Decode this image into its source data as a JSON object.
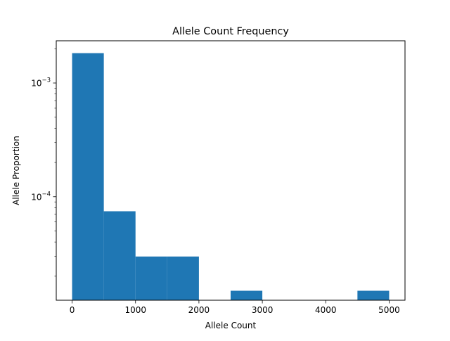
{
  "chart_data": {
    "type": "bar",
    "subtype": "histogram",
    "title": "Allele Count Frequency",
    "xlabel": "Allele Count",
    "ylabel": "Allele Proportion",
    "yscale": "log",
    "xlim": [
      -250,
      5250
    ],
    "ylim": [
      1.23e-05,
      0.00235
    ],
    "xticks": [
      {
        "value": 0,
        "label": "0"
      },
      {
        "value": 1000,
        "label": "1000"
      },
      {
        "value": 2000,
        "label": "2000"
      },
      {
        "value": 3000,
        "label": "3000"
      },
      {
        "value": 4000,
        "label": "4000"
      },
      {
        "value": 5000,
        "label": "5000"
      }
    ],
    "yticks": [
      {
        "value": 0.0001,
        "base": "10",
        "exp": "−4"
      },
      {
        "value": 0.001,
        "base": "10",
        "exp": "−3"
      }
    ],
    "bins": [
      {
        "x0": 0,
        "x1": 500,
        "value": 0.00183
      },
      {
        "x0": 500,
        "x1": 1000,
        "value": 7.45e-05
      },
      {
        "x0": 1000,
        "x1": 1500,
        "value": 2.98e-05
      },
      {
        "x0": 1500,
        "x1": 2000,
        "value": 2.98e-05
      },
      {
        "x0": 2000,
        "x1": 2500,
        "value": 0
      },
      {
        "x0": 2500,
        "x1": 3000,
        "value": 1.49e-05
      },
      {
        "x0": 3000,
        "x1": 3500,
        "value": 0
      },
      {
        "x0": 3500,
        "x1": 4000,
        "value": 0
      },
      {
        "x0": 4000,
        "x1": 4500,
        "value": 0
      },
      {
        "x0": 4500,
        "x1": 5000,
        "value": 1.49e-05
      }
    ],
    "bar_color": "#1f77b4",
    "grid": false,
    "legend": "none"
  }
}
